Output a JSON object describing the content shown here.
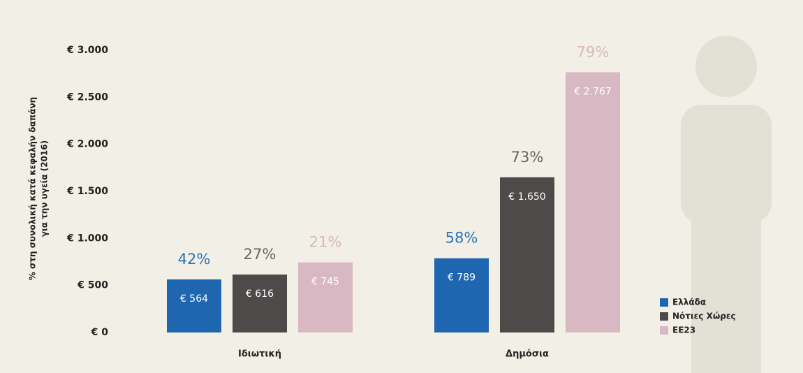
{
  "chart_data": {
    "type": "bar",
    "ylabel_lines": [
      "% στη συνολική κατά κεφαλήν δαπάνη",
      "για την υγεία (2016)"
    ],
    "categories": [
      "Ιδιωτική",
      "Δημόσια"
    ],
    "series": [
      {
        "name": "Ελλάδα",
        "color": "#1f66b0",
        "values": [
          564,
          789
        ],
        "value_labels": [
          "€ 564",
          "€ 789"
        ],
        "share_labels": [
          "42%",
          "58%"
        ],
        "share_color": "#2a74b2"
      },
      {
        "name": "Νότιες Χώρες",
        "color": "#4f4a4a",
        "values": [
          616,
          1650
        ],
        "value_labels": [
          "€ 616",
          "€ 1.650"
        ],
        "share_labels": [
          "27%",
          "73%"
        ],
        "share_color": "#6b6363"
      },
      {
        "name": "ΕΕ23",
        "color": "#d8b8c3",
        "values": [
          745,
          2767
        ],
        "value_labels": [
          "€ 745",
          "€ 2.767"
        ],
        "share_labels": [
          "21%",
          "79%"
        ],
        "share_color": "#d8b8c3"
      }
    ],
    "ylim": [
      0,
      3000
    ],
    "yticks": [
      {
        "value": 0,
        "label": "€ 0"
      },
      {
        "value": 500,
        "label": "€ 500"
      },
      {
        "value": 1000,
        "label": "€ 1.000"
      },
      {
        "value": 1500,
        "label": "€ 1.500"
      },
      {
        "value": 2000,
        "label": "€ 2.000"
      },
      {
        "value": 2500,
        "label": "€ 2.500"
      },
      {
        "value": 3000,
        "label": "€ 3.000"
      }
    ],
    "grid": false,
    "legend": "right"
  }
}
